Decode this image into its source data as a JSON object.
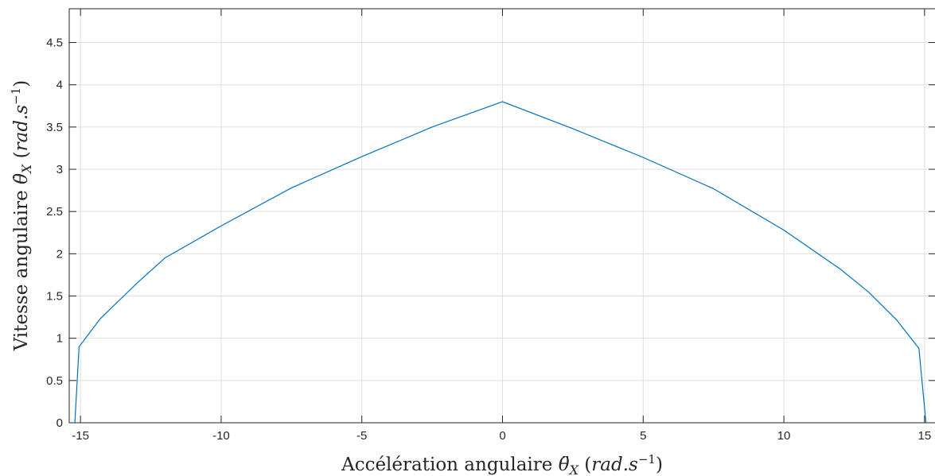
{
  "chart_data": {
    "type": "line",
    "xlabel": {
      "prefix": "Accélération angulaire ",
      "symbol": "θ̈",
      "subscript": "X",
      "unit_open": " (",
      "unit_base": "rad.s",
      "unit_exp": "−1",
      "unit_close": ")"
    },
    "ylabel": {
      "prefix": "Vitesse angulaire ",
      "symbol": "θ̇",
      "subscript": "X",
      "unit_open": " (",
      "unit_base": "rad.s",
      "unit_exp": "−1",
      "unit_close": ")"
    },
    "xlim": [
      -15.4,
      15.4
    ],
    "ylim": [
      0,
      4.9
    ],
    "xticks": [
      -15,
      -10,
      -5,
      0,
      5,
      10,
      15
    ],
    "xtick_labels": [
      "-15",
      "-10",
      "-5",
      "0",
      "5",
      "10",
      "15"
    ],
    "yticks": [
      0,
      0.5,
      1,
      1.5,
      2,
      2.5,
      3,
      3.5,
      4,
      4.5
    ],
    "ytick_labels": [
      "0",
      "0.5",
      "1",
      "1.5",
      "2",
      "2.5",
      "3",
      "3.5",
      "4",
      "4.5"
    ],
    "grid": true,
    "series": [
      {
        "color": "#0072bd",
        "x": [
          -15.2,
          -15.05,
          -14.3,
          -13.0,
          -12.0,
          -10.0,
          -7.5,
          -5.0,
          -2.5,
          0,
          2.5,
          5.0,
          7.5,
          10.0,
          12.0,
          13.0,
          14.0,
          14.8,
          15.05
        ],
        "y": [
          0,
          0.9,
          1.23,
          1.65,
          1.95,
          2.33,
          2.78,
          3.15,
          3.5,
          3.8,
          3.48,
          3.14,
          2.77,
          2.28,
          1.82,
          1.55,
          1.22,
          0.88,
          0
        ]
      }
    ]
  }
}
